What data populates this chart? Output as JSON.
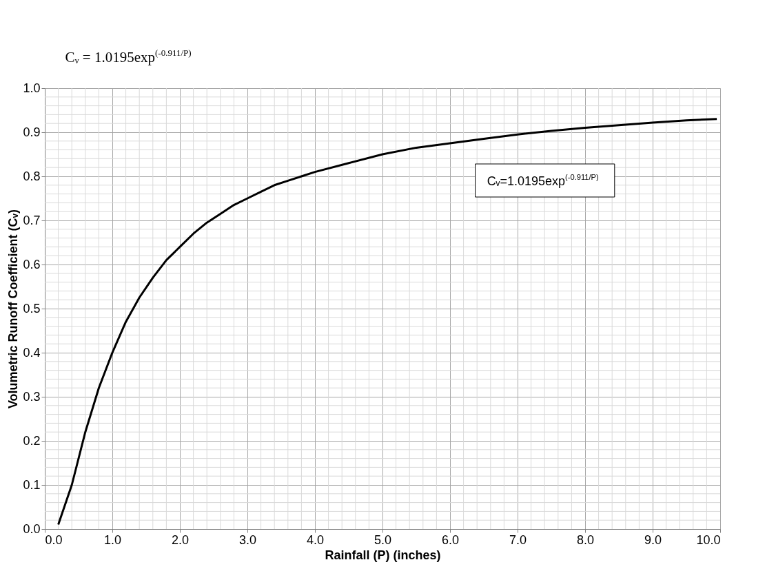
{
  "chart_data": {
    "type": "line",
    "title": "Cᵥ = 1.0195exp$^{(-0.911/P)}$",
    "xlabel": "Rainfall (P) (inches)",
    "ylabel": "Volumetric Runoff Coefficient (Cᵥ)",
    "annotations": [
      "Cᵥ=1.0195exp$^{(-0.911/P)}$"
    ],
    "x": [
      0.2,
      0.4,
      0.6,
      0.8,
      1.0,
      1.2,
      1.4,
      1.6,
      1.8,
      2.0,
      2.2,
      2.4,
      2.6,
      2.8,
      3.0,
      3.2,
      3.4,
      3.6,
      3.8,
      4.0,
      4.5,
      5.0,
      5.5,
      6.0,
      6.5,
      7.0,
      7.5,
      8.0,
      8.5,
      9.0,
      9.5,
      9.95
    ],
    "series": [
      {
        "color": "#000000",
        "values": [
          0.01,
          0.1,
          0.22,
          0.32,
          0.4,
          0.47,
          0.525,
          0.57,
          0.61,
          0.64,
          0.67,
          0.695,
          0.715,
          0.735,
          0.75,
          0.765,
          0.78,
          0.79,
          0.8,
          0.81,
          0.83,
          0.85,
          0.865,
          0.875,
          0.885,
          0.895,
          0.903,
          0.91,
          0.916,
          0.922,
          0.927,
          0.93
        ]
      }
    ],
    "xlim": [
      0,
      10
    ],
    "ylim": [
      0,
      1
    ],
    "xticks": [
      {
        "value": 0,
        "label": "0.0"
      },
      {
        "value": 1,
        "label": "1.0"
      },
      {
        "value": 2,
        "label": "2.0"
      },
      {
        "value": 3,
        "label": "3.0"
      },
      {
        "value": 4,
        "label": "4.0"
      },
      {
        "value": 5,
        "label": "5.0"
      },
      {
        "value": 6,
        "label": "6.0"
      },
      {
        "value": 7,
        "label": "7.0"
      },
      {
        "value": 8,
        "label": "8.0"
      },
      {
        "value": 9,
        "label": "9.0"
      },
      {
        "value": 10,
        "label": "10.0"
      }
    ],
    "yticks": [
      {
        "value": 0,
        "label": "0.0"
      },
      0.1,
      0.2,
      0.3,
      0.4,
      0.5,
      0.6,
      0.7,
      0.8,
      0.9,
      {
        "value": 1,
        "label": "1.0"
      }
    ],
    "grid": true,
    "marker": "none",
    "line_style": "solid"
  }
}
